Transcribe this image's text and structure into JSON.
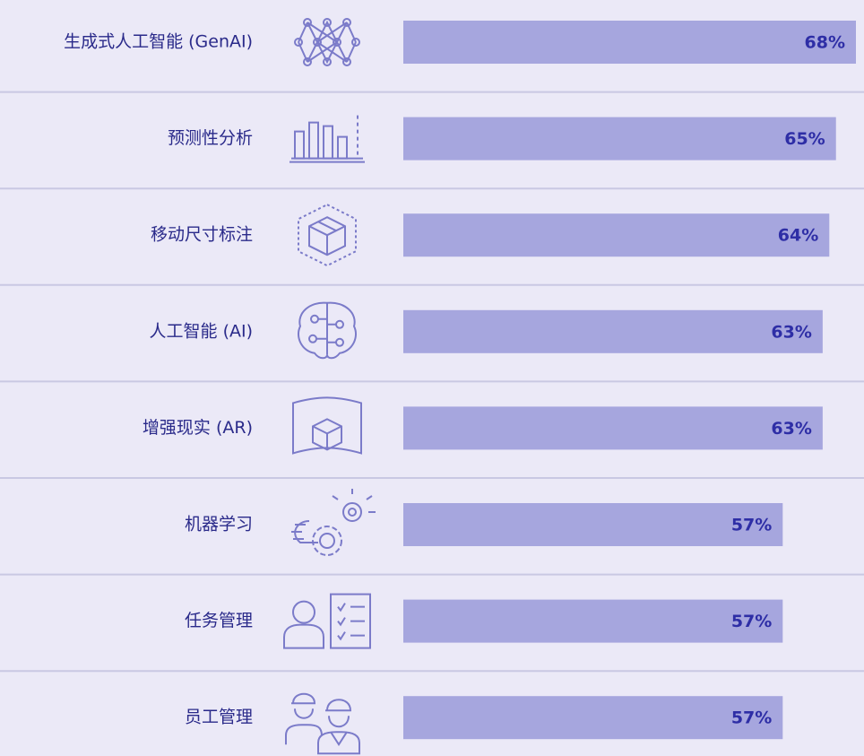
{
  "chart_data": {
    "type": "bar",
    "orientation": "horizontal",
    "categories": [
      "生成式人工智能 (GenAI)",
      "预测性分析",
      "移动尺寸标注",
      "人工智能 (AI)",
      "增强现实 (AR)",
      "机器学习",
      "任务管理",
      "员工管理"
    ],
    "values": [
      68,
      65,
      64,
      63,
      63,
      57,
      57,
      57
    ],
    "value_labels": [
      "68%",
      "65%",
      "64%",
      "63%",
      "63%",
      "57%",
      "57%",
      "57%"
    ],
    "color": "#a6a6de"
  }
}
